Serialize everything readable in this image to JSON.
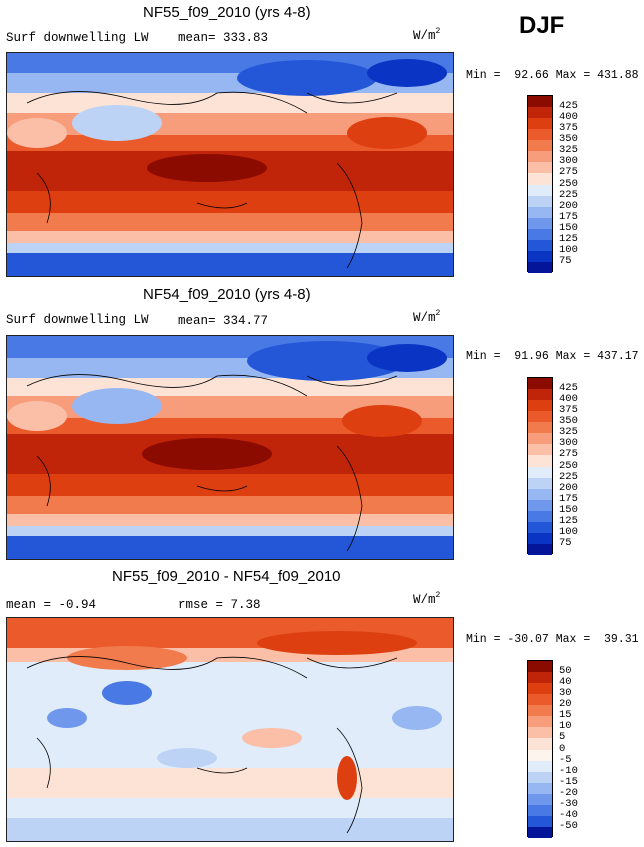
{
  "season": "DJF",
  "units_prefix": "W/m",
  "units_exp": "2",
  "chart_data": [
    {
      "type": "heatmap",
      "title": "NF55_f09_2010 (yrs 4-8)",
      "variable": "Surf downwelling LW",
      "mean_text": "mean= 333.83",
      "min": 92.66,
      "max": 431.88,
      "minmax_text": "Min =  92.66 Max = 431.88",
      "colorbar_levels": [
        "425",
        "400",
        "375",
        "350",
        "325",
        "300",
        "275",
        "250",
        "225",
        "200",
        "175",
        "150",
        "125",
        "100",
        "75"
      ],
      "colors": [
        "#8b0b00",
        "#c0250a",
        "#dd3f10",
        "#ea5a2a",
        "#f27b4e",
        "#f79d7c",
        "#fbbea6",
        "#fde3d6",
        "#e0ecfa",
        "#bdd3f6",
        "#97b7f2",
        "#6f98ec",
        "#4879e4",
        "#2456d8",
        "#0a35c4",
        "#04159a"
      ]
    },
    {
      "type": "heatmap",
      "title": "NF54_f09_2010 (yrs 4-8)",
      "variable": "Surf downwelling LW",
      "mean_text": "mean= 334.77",
      "min": 91.96,
      "max": 437.17,
      "minmax_text": "Min =  91.96 Max = 437.17",
      "colorbar_levels": [
        "425",
        "400",
        "375",
        "350",
        "325",
        "300",
        "275",
        "250",
        "225",
        "200",
        "175",
        "150",
        "125",
        "100",
        "75"
      ],
      "colors": [
        "#8b0b00",
        "#c0250a",
        "#dd3f10",
        "#ea5a2a",
        "#f27b4e",
        "#f79d7c",
        "#fbbea6",
        "#fde3d6",
        "#e0ecfa",
        "#bdd3f6",
        "#97b7f2",
        "#6f98ec",
        "#4879e4",
        "#2456d8",
        "#0a35c4",
        "#04159a"
      ]
    },
    {
      "type": "heatmap",
      "title": "NF55_f09_2010 - NF54_f09_2010",
      "mean_text": "mean =  -0.94",
      "rmse_text": "rmse =   7.38",
      "min": -30.07,
      "max": 39.31,
      "minmax_text": "Min = -30.07 Max =  39.31",
      "colorbar_levels": [
        "50",
        "40",
        "30",
        "20",
        "15",
        "10",
        "5",
        "0",
        "-5",
        "-10",
        "-15",
        "-20",
        "-30",
        "-40",
        "-50"
      ],
      "colors": [
        "#8b0b00",
        "#c0250a",
        "#dd3f10",
        "#ea5a2a",
        "#f27b4e",
        "#f79d7c",
        "#fbbea6",
        "#fde3d6",
        "#fdf4ee",
        "#e0ecfa",
        "#bdd3f6",
        "#97b7f2",
        "#6f98ec",
        "#4879e4",
        "#2456d8",
        "#04159a"
      ]
    }
  ]
}
